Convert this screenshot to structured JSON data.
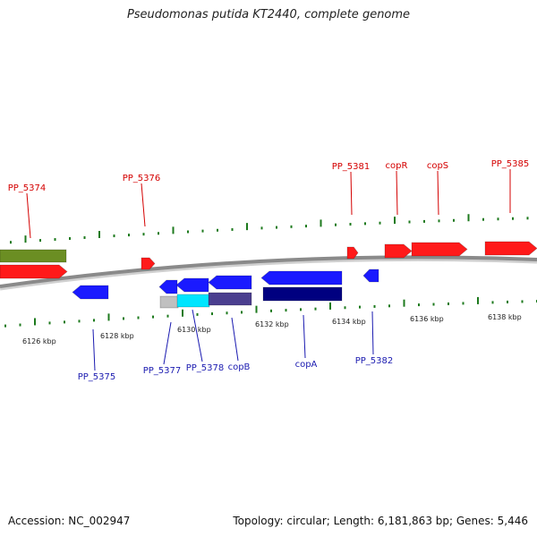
{
  "title": "Pseudomonas putida KT2440, complete genome",
  "accession": "Accession: NC_002947",
  "topology": "Topology: circular; Length: 6,181,863 bp; Genes: 5,446",
  "colors": {
    "backbone": "#8a8a8a",
    "forward_gene": "#ff1a1a",
    "reverse_gene": "#1a1aff",
    "forward_label": "#d40000",
    "reverse_label": "#1a1ab0",
    "tick": "#1d7a1d",
    "green_feature": "#6b8e23",
    "light_blue_feature": "#00e5ff",
    "slate_feature": "#4b3f8f",
    "gray_feature": "#c0c0c0",
    "navy_feature": "#000080"
  },
  "tick_labels": [
    "6126 kbp",
    "6128 kbp",
    "6130 kbp",
    "6132 kbp",
    "6134 kbp",
    "6136 kbp",
    "6138 kbp"
  ],
  "forward_labels": [
    "PP_5374",
    "PP_5376",
    "PP_5381",
    "copR",
    "copS",
    "PP_5385"
  ],
  "reverse_labels": [
    "PP_5375",
    "PP_5377",
    "PP_5378",
    "copB",
    "copA",
    "PP_5382"
  ]
}
